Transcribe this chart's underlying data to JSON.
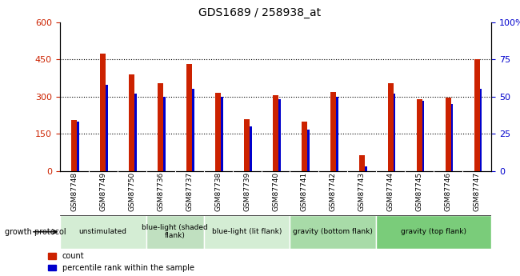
{
  "title": "GDS1689 / 258938_at",
  "samples": [
    "GSM87748",
    "GSM87749",
    "GSM87750",
    "GSM87736",
    "GSM87737",
    "GSM87738",
    "GSM87739",
    "GSM87740",
    "GSM87741",
    "GSM87742",
    "GSM87743",
    "GSM87744",
    "GSM87745",
    "GSM87746",
    "GSM87747"
  ],
  "counts": [
    205,
    472,
    390,
    355,
    430,
    315,
    210,
    305,
    200,
    320,
    65,
    355,
    290,
    295,
    450
  ],
  "percentiles": [
    33,
    58,
    52,
    50,
    55,
    50,
    30,
    48,
    28,
    50,
    3,
    52,
    47,
    45,
    55
  ],
  "groups": [
    {
      "label": "unstimulated",
      "start": 0,
      "end": 3,
      "color": "#d4edd4"
    },
    {
      "label": "blue-light (shaded\nflank)",
      "start": 3,
      "end": 5,
      "color": "#c0e0c0"
    },
    {
      "label": "blue-light (lit flank)",
      "start": 5,
      "end": 8,
      "color": "#d4edd4"
    },
    {
      "label": "gravity (bottom flank)",
      "start": 8,
      "end": 11,
      "color": "#a8dba8"
    },
    {
      "label": "gravity (top flank)",
      "start": 11,
      "end": 15,
      "color": "#7acc7a"
    }
  ],
  "ylim_left": [
    0,
    600
  ],
  "ylim_right": [
    0,
    100
  ],
  "yticks_left": [
    0,
    150,
    300,
    450,
    600
  ],
  "yticks_right": [
    0,
    25,
    50,
    75,
    100
  ],
  "red_bar_width": 0.18,
  "blue_bar_width": 0.08,
  "count_color": "#cc2200",
  "percentile_color": "#0000cc",
  "bg_color": "#d8d8d8",
  "legend_count_label": "count",
  "legend_pct_label": "percentile rank within the sample",
  "growth_protocol_label": "growth protocol"
}
